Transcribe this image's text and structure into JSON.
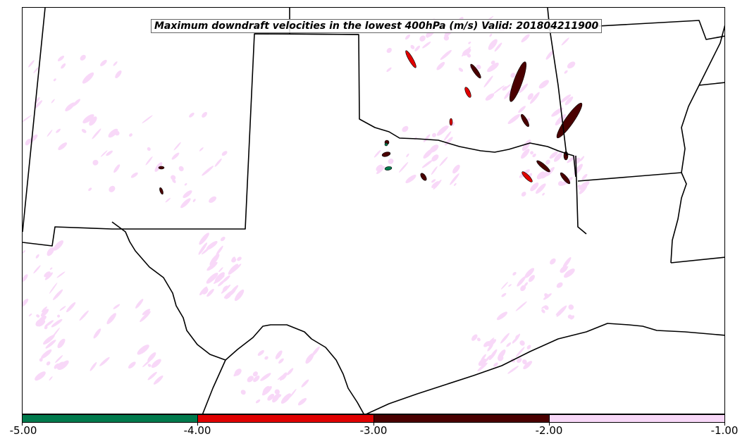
{
  "title": "Maximum downdraft velocities in the lowest 400hPa (m/s) Valid: 201804211900",
  "colorbar": {
    "ticks": [
      "-5.00",
      "-4.00",
      "-3.00",
      "-2.00",
      "-1.00"
    ],
    "bins": [
      {
        "range": [
          -5,
          -4
        ],
        "color": "#007a4d"
      },
      {
        "range": [
          -4,
          -3
        ],
        "color": "#e00000"
      },
      {
        "range": [
          -3,
          -2
        ],
        "color": "#4a0000"
      },
      {
        "range": [
          -2,
          -1
        ],
        "color": "#f8d8f8"
      }
    ]
  }
}
